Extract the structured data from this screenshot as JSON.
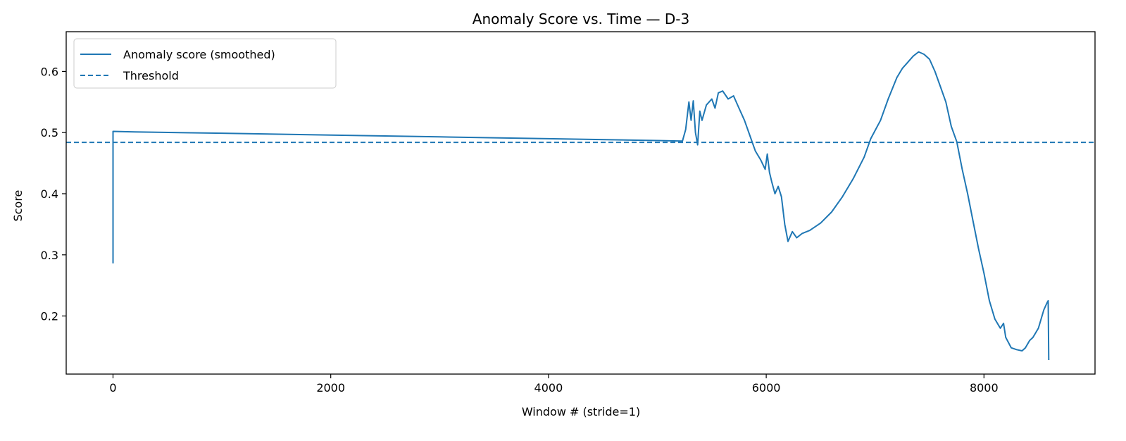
{
  "chart_data": {
    "type": "line",
    "title": "Anomaly Score vs. Time — D-3",
    "xlabel": "Window # (stride=1)",
    "ylabel": "Score",
    "xlim": [
      -430,
      9020
    ],
    "ylim": [
      0.105,
      0.665
    ],
    "x_ticks": [
      0,
      2000,
      4000,
      6000,
      8000
    ],
    "y_ticks": [
      0.2,
      0.3,
      0.4,
      0.5,
      0.6
    ],
    "y_tick_labels": [
      "0.2",
      "0.3",
      "0.4",
      "0.5",
      "0.6"
    ],
    "grid": false,
    "legend_position": "top-left",
    "colors": {
      "series": "#1f77b4"
    },
    "series": [
      {
        "name": "Anomaly score (smoothed)",
        "style": "solid",
        "points": [
          [
            0,
            0.286
          ],
          [
            0,
            0.502
          ],
          [
            200,
            0.501
          ],
          [
            1000,
            0.499
          ],
          [
            2000,
            0.496
          ],
          [
            3000,
            0.493
          ],
          [
            4000,
            0.49
          ],
          [
            5000,
            0.487
          ],
          [
            5230,
            0.486
          ],
          [
            5260,
            0.505
          ],
          [
            5290,
            0.55
          ],
          [
            5310,
            0.52
          ],
          [
            5330,
            0.552
          ],
          [
            5350,
            0.5
          ],
          [
            5370,
            0.48
          ],
          [
            5390,
            0.535
          ],
          [
            5410,
            0.52
          ],
          [
            5450,
            0.545
          ],
          [
            5500,
            0.555
          ],
          [
            5530,
            0.54
          ],
          [
            5560,
            0.565
          ],
          [
            5600,
            0.568
          ],
          [
            5650,
            0.555
          ],
          [
            5700,
            0.56
          ],
          [
            5750,
            0.54
          ],
          [
            5800,
            0.52
          ],
          [
            5850,
            0.495
          ],
          [
            5900,
            0.47
          ],
          [
            5950,
            0.455
          ],
          [
            5990,
            0.44
          ],
          [
            6010,
            0.465
          ],
          [
            6030,
            0.435
          ],
          [
            6050,
            0.42
          ],
          [
            6080,
            0.4
          ],
          [
            6110,
            0.412
          ],
          [
            6140,
            0.395
          ],
          [
            6170,
            0.35
          ],
          [
            6200,
            0.322
          ],
          [
            6240,
            0.338
          ],
          [
            6280,
            0.328
          ],
          [
            6330,
            0.335
          ],
          [
            6400,
            0.34
          ],
          [
            6500,
            0.352
          ],
          [
            6600,
            0.37
          ],
          [
            6700,
            0.395
          ],
          [
            6800,
            0.425
          ],
          [
            6900,
            0.46
          ],
          [
            6960,
            0.49
          ],
          [
            7050,
            0.52
          ],
          [
            7120,
            0.555
          ],
          [
            7200,
            0.59
          ],
          [
            7250,
            0.605
          ],
          [
            7300,
            0.615
          ],
          [
            7350,
            0.625
          ],
          [
            7400,
            0.632
          ],
          [
            7450,
            0.628
          ],
          [
            7500,
            0.62
          ],
          [
            7550,
            0.6
          ],
          [
            7600,
            0.575
          ],
          [
            7650,
            0.55
          ],
          [
            7700,
            0.51
          ],
          [
            7750,
            0.485
          ],
          [
            7800,
            0.44
          ],
          [
            7850,
            0.4
          ],
          [
            7900,
            0.355
          ],
          [
            7950,
            0.31
          ],
          [
            8000,
            0.27
          ],
          [
            8050,
            0.225
          ],
          [
            8100,
            0.195
          ],
          [
            8150,
            0.18
          ],
          [
            8180,
            0.188
          ],
          [
            8200,
            0.165
          ],
          [
            8250,
            0.148
          ],
          [
            8300,
            0.145
          ],
          [
            8350,
            0.143
          ],
          [
            8380,
            0.148
          ],
          [
            8420,
            0.16
          ],
          [
            8450,
            0.165
          ],
          [
            8500,
            0.18
          ],
          [
            8550,
            0.21
          ],
          [
            8580,
            0.222
          ],
          [
            8590,
            0.225
          ],
          [
            8595,
            0.128
          ]
        ]
      },
      {
        "name": "Threshold",
        "style": "dashed",
        "value": 0.484
      }
    ]
  }
}
